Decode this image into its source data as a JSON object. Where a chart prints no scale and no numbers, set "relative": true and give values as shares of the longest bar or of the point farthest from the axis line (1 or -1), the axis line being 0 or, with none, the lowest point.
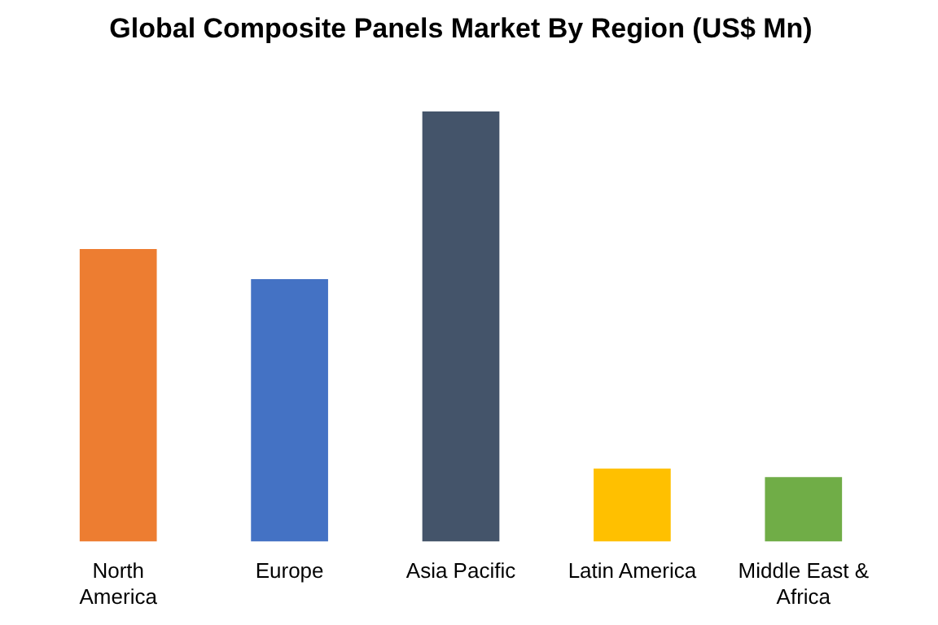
{
  "chart_data": {
    "type": "bar",
    "title": "Global Composite Panels Market By Region (US$ Mn)",
    "categories": [
      "North America",
      "Europe",
      "Asia Pacific",
      "Latin America",
      "Middle East & Africa"
    ],
    "values": [
      0.68,
      0.61,
      1,
      0.17,
      0.15
    ],
    "colors": [
      "#ed7d31",
      "#4472c4",
      "#44546a",
      "#ffc000",
      "#70ad47"
    ],
    "relative": true,
    "grid": false,
    "legend": false
  }
}
